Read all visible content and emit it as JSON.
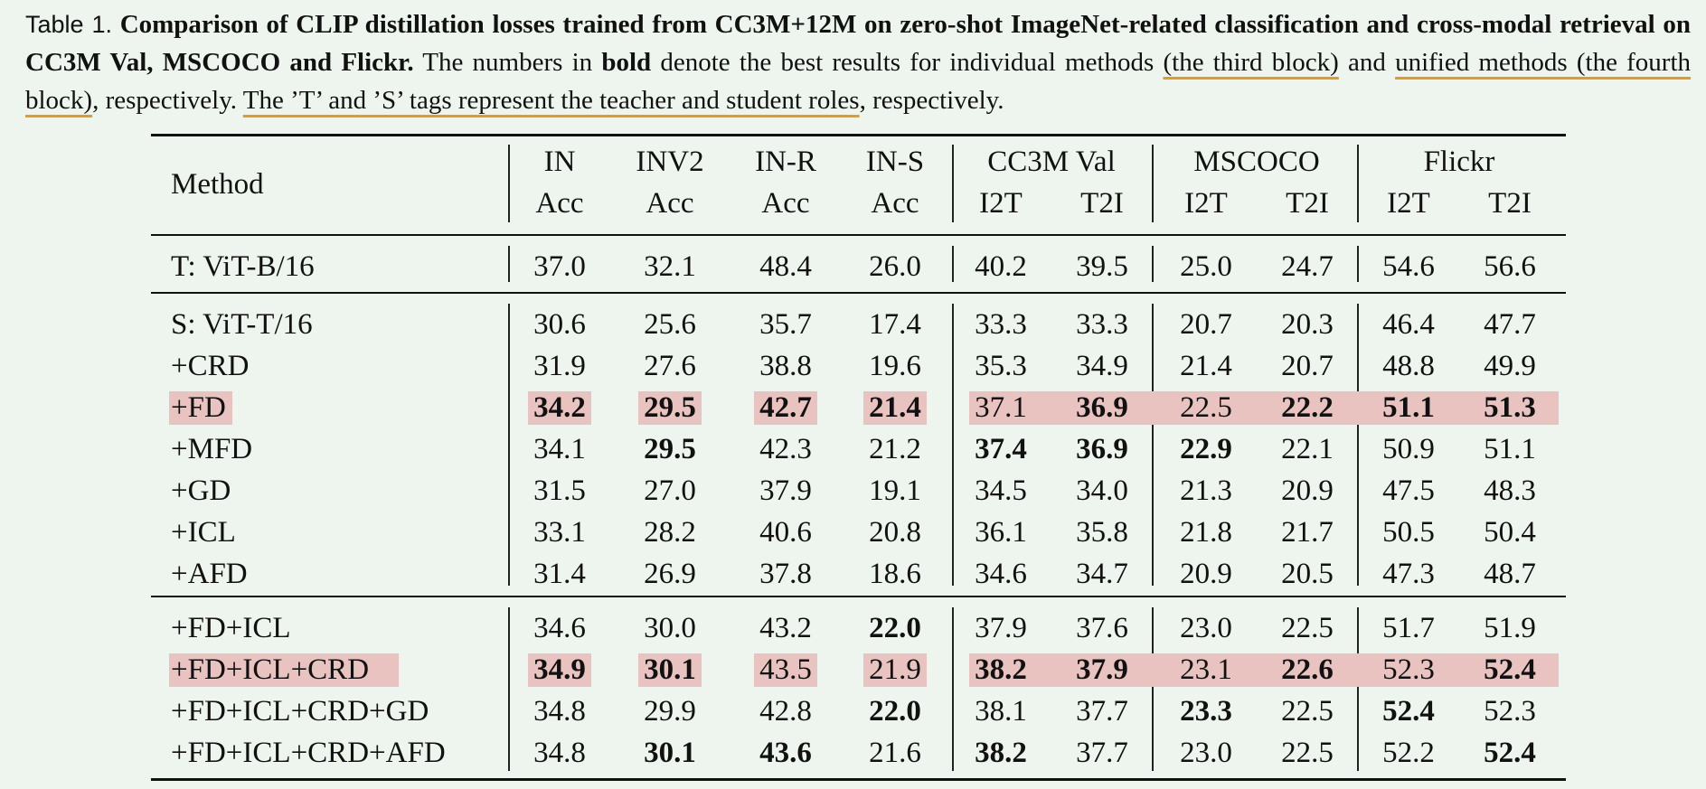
{
  "caption": {
    "label": "Table 1.",
    "title": "Comparison of CLIP distillation losses trained from CC3M+12M on zero-shot ImageNet-related classification and cross-modal retrieval on CC3M Val, MSCOCO and Flickr.",
    "text_1": " The numbers in ",
    "bold_word": "bold",
    "text_2": " denote the best results for individual methods ",
    "ul_1": "(the third block)",
    "text_3": " and ",
    "ul_2": "unified methods (the fourth block)",
    "text_4": ", respectively. ",
    "ul_3": "The ’T’ and ’S’ tags represent the teacher and student roles",
    "text_5": ", respectively."
  },
  "table": {
    "method_header": "Method",
    "col_headers_top": [
      "IN",
      "INV2",
      "IN-R",
      "IN-S",
      "CC3M Val",
      "MSCOCO",
      "Flickr"
    ],
    "col_headers_bottom": [
      "Acc",
      "Acc",
      "Acc",
      "Acc",
      "I2T",
      "T2I",
      "I2T",
      "T2I",
      "I2T",
      "T2I"
    ],
    "rows": [
      {
        "method": "T: ViT-B/16",
        "values": [
          "37.0",
          "32.1",
          "48.4",
          "26.0",
          "40.2",
          "39.5",
          "25.0",
          "24.7",
          "54.6",
          "56.6"
        ],
        "bold": []
      },
      {
        "method": "S: ViT-T/16",
        "values": [
          "30.6",
          "25.6",
          "35.7",
          "17.4",
          "33.3",
          "33.3",
          "20.7",
          "20.3",
          "46.4",
          "47.7"
        ],
        "bold": []
      },
      {
        "method": "+CRD",
        "values": [
          "31.9",
          "27.6",
          "38.8",
          "19.6",
          "35.3",
          "34.9",
          "21.4",
          "20.7",
          "48.8",
          "49.9"
        ],
        "bold": []
      },
      {
        "method": "+FD",
        "values": [
          "34.2",
          "29.5",
          "42.7",
          "21.4",
          "37.1",
          "36.9",
          "22.5",
          "22.2",
          "51.1",
          "51.3"
        ],
        "bold": [
          0,
          1,
          2,
          3,
          5,
          7,
          8,
          9
        ],
        "highlight": true
      },
      {
        "method": "+MFD",
        "values": [
          "34.1",
          "29.5",
          "42.3",
          "21.2",
          "37.4",
          "36.9",
          "22.9",
          "22.1",
          "50.9",
          "51.1"
        ],
        "bold": [
          1,
          4,
          5,
          6
        ]
      },
      {
        "method": "+GD",
        "values": [
          "31.5",
          "27.0",
          "37.9",
          "19.1",
          "34.5",
          "34.0",
          "21.3",
          "20.9",
          "47.5",
          "48.3"
        ],
        "bold": []
      },
      {
        "method": "+ICL",
        "values": [
          "33.1",
          "28.2",
          "40.6",
          "20.8",
          "36.1",
          "35.8",
          "21.8",
          "21.7",
          "50.5",
          "50.4"
        ],
        "bold": []
      },
      {
        "method": "+AFD",
        "values": [
          "31.4",
          "26.9",
          "37.8",
          "18.6",
          "34.6",
          "34.7",
          "20.9",
          "20.5",
          "47.3",
          "48.7"
        ],
        "bold": []
      },
      {
        "method": "+FD+ICL",
        "values": [
          "34.6",
          "30.0",
          "43.2",
          "22.0",
          "37.9",
          "37.6",
          "23.0",
          "22.5",
          "51.7",
          "51.9"
        ],
        "bold": [
          3
        ]
      },
      {
        "method": "+FD+ICL+CRD",
        "values": [
          "34.9",
          "30.1",
          "43.5",
          "21.9",
          "38.2",
          "37.9",
          "23.1",
          "22.6",
          "52.3",
          "52.4"
        ],
        "bold": [
          0,
          1,
          4,
          5,
          7,
          9
        ],
        "highlight": true
      },
      {
        "method": "+FD+ICL+CRD+GD",
        "values": [
          "34.8",
          "29.9",
          "42.8",
          "22.0",
          "38.1",
          "37.7",
          "23.3",
          "22.5",
          "52.4",
          "52.3"
        ],
        "bold": [
          3,
          6,
          8
        ]
      },
      {
        "method": "+FD+ICL+CRD+AFD",
        "values": [
          "34.8",
          "30.1",
          "43.6",
          "21.6",
          "38.2",
          "37.7",
          "23.0",
          "22.5",
          "52.2",
          "52.4"
        ],
        "bold": [
          1,
          2,
          4,
          9
        ]
      }
    ]
  }
}
